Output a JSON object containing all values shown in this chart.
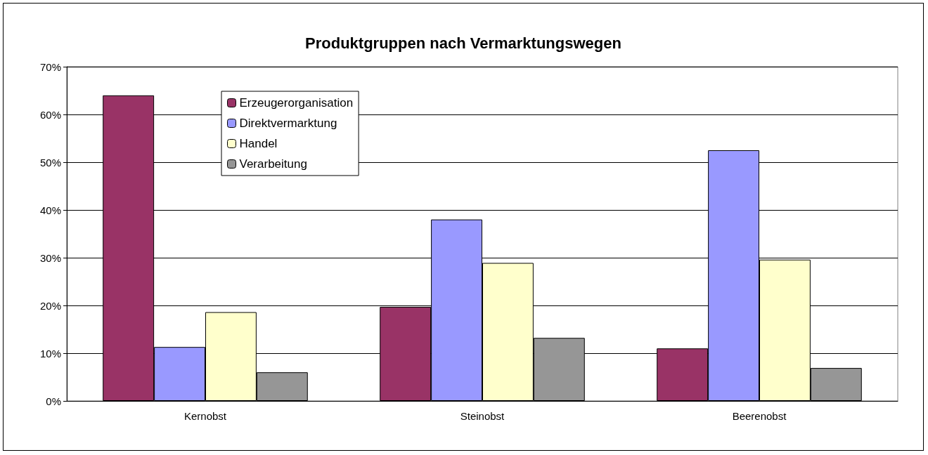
{
  "chart_data": {
    "type": "bar",
    "title": "Produktgruppen nach Vermarktungswegen",
    "categories": [
      "Kernobst",
      "Steinobst",
      "Beerenobst"
    ],
    "series": [
      {
        "name": "Erzeugerorganisation",
        "color": "#993366",
        "values": [
          64,
          19.7,
          11
        ]
      },
      {
        "name": "Direktvermarktung",
        "color": "#9999ff",
        "values": [
          11.3,
          38,
          52.5
        ]
      },
      {
        "name": "Handel",
        "color": "#ffffcc",
        "values": [
          18.6,
          28.9,
          29.6
        ]
      },
      {
        "name": "Verarbeitung",
        "color": "#969696",
        "values": [
          6,
          13.2,
          6.9
        ]
      }
    ],
    "ylim": [
      0,
      70
    ],
    "yticks": [
      {
        "value": 0,
        "label": "0%"
      },
      {
        "value": 10,
        "label": "10%"
      },
      {
        "value": 20,
        "label": "20%"
      },
      {
        "value": 30,
        "label": "30%"
      },
      {
        "value": 40,
        "label": "40%"
      },
      {
        "value": 50,
        "label": "50%"
      },
      {
        "value": 60,
        "label": "60%"
      },
      {
        "value": 70,
        "label": "70%"
      }
    ],
    "grid": "y",
    "legend": "top left"
  }
}
